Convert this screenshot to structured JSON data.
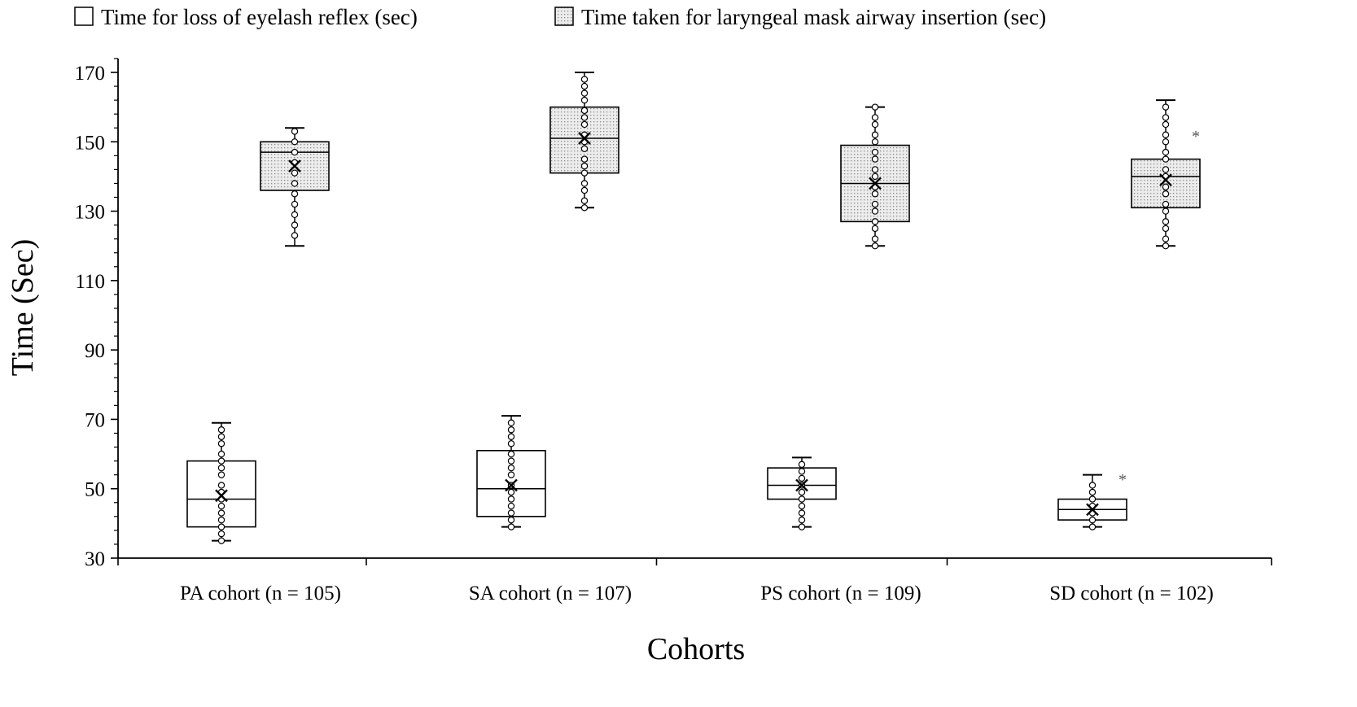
{
  "chart_data": {
    "type": "box",
    "title": "",
    "xlabel": "Cohorts",
    "ylabel": "Time (Sec)",
    "ylim": [
      30,
      174
    ],
    "yticks": [
      30,
      50,
      70,
      90,
      110,
      130,
      150,
      170
    ],
    "legend_position": "top",
    "categories": [
      "PA cohort (n = 105)",
      "SA cohort (n = 107)",
      "PS cohort (n = 109)",
      "SD cohort (n = 102)"
    ],
    "series": [
      {
        "name": "Time for loss of eyelash reflex (sec)",
        "fill": "#ffffff",
        "pattern": "none",
        "boxes": [
          {
            "min": 35,
            "q1": 39,
            "median": 47,
            "q3": 58,
            "max": 69,
            "mean": 48,
            "points": [
              35,
              37,
              39,
              41,
              43,
              45,
              47,
              49,
              51,
              54,
              56,
              58,
              60,
              63,
              65,
              67
            ],
            "outliers": []
          },
          {
            "min": 39,
            "q1": 42,
            "median": 50,
            "q3": 61,
            "max": 71,
            "mean": 51,
            "points": [
              39,
              41,
              43,
              45,
              47,
              49,
              51,
              54,
              56,
              58,
              60,
              63,
              65,
              67,
              69
            ],
            "outliers": []
          },
          {
            "min": 39,
            "q1": 47,
            "median": 51,
            "q3": 56,
            "max": 59,
            "mean": 51,
            "points": [
              39,
              41,
              43,
              45,
              47,
              49,
              51,
              53,
              55,
              57
            ],
            "outliers": []
          },
          {
            "min": 39,
            "q1": 41,
            "median": 44,
            "q3": 47,
            "max": 54,
            "mean": 44,
            "points": [
              39,
              41,
              43,
              45,
              47,
              49,
              51
            ],
            "outliers": [
              53
            ]
          }
        ]
      },
      {
        "name": "Time taken for laryngeal mask airway insertion (sec)",
        "fill": "#e2e2e2",
        "pattern": "dots",
        "boxes": [
          {
            "min": 120,
            "q1": 136,
            "median": 147,
            "q3": 150,
            "max": 154,
            "mean": 143,
            "points": [
              123,
              126,
              129,
              132,
              135,
              138,
              141,
              144,
              147,
              150,
              153
            ],
            "outliers": []
          },
          {
            "min": 131,
            "q1": 141,
            "median": 151,
            "q3": 160,
            "max": 170,
            "mean": 151,
            "points": [
              131,
              133,
              136,
              138,
              141,
              143,
              145,
              148,
              150,
              152,
              155,
              157,
              159,
              162,
              164,
              166,
              168
            ],
            "outliers": []
          },
          {
            "min": 120,
            "q1": 127,
            "median": 138,
            "q3": 149,
            "max": 160,
            "mean": 138,
            "points": [
              120,
              122,
              125,
              127,
              130,
              132,
              135,
              137,
              140,
              142,
              145,
              147,
              150,
              152,
              155,
              157,
              160
            ],
            "outliers": []
          },
          {
            "min": 120,
            "q1": 131,
            "median": 140,
            "q3": 145,
            "max": 162,
            "mean": 139,
            "points": [
              120,
              122,
              125,
              127,
              130,
              132,
              135,
              137,
              140,
              142,
              145,
              147,
              150,
              152,
              155,
              157,
              160
            ],
            "outliers": [
              152
            ]
          }
        ]
      }
    ]
  }
}
